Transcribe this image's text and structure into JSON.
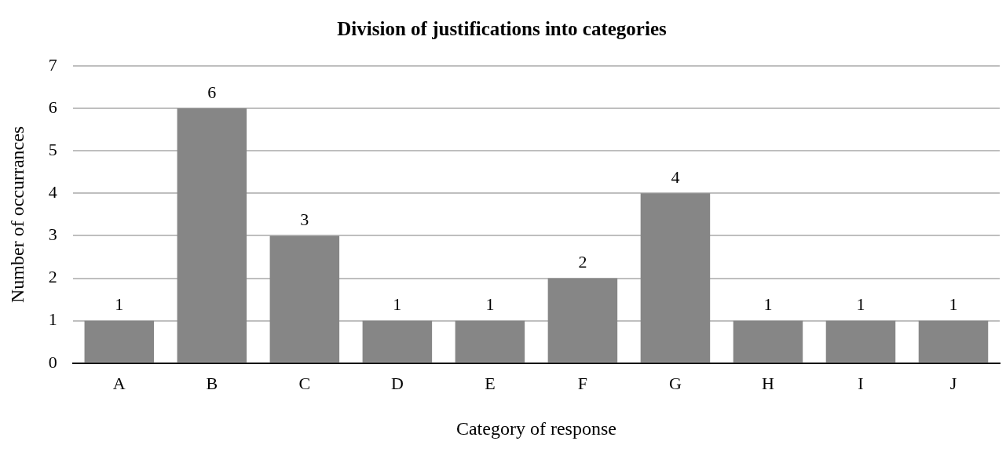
{
  "chart_data": {
    "type": "bar",
    "title": "Division of justifications into categories",
    "xlabel": "Category of response",
    "ylabel": "Number of occurrances",
    "categories": [
      "A",
      "B",
      "C",
      "D",
      "E",
      "F",
      "G",
      "H",
      "I",
      "J"
    ],
    "values": [
      1,
      6,
      3,
      1,
      1,
      2,
      4,
      1,
      1,
      1
    ],
    "color": "#868686",
    "ylim": [
      0,
      7
    ],
    "yticks": [
      0,
      1,
      2,
      3,
      4,
      5,
      6,
      7
    ],
    "grid": "y",
    "data_labels": true,
    "legend": false
  }
}
